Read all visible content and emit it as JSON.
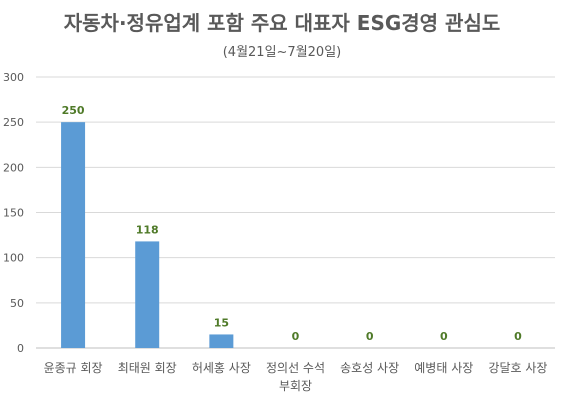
{
  "chart_data": {
    "type": "bar",
    "title": "자동차·정유업계 포함 주요 대표자 ESG경영 관심도",
    "subtitle": "(4월21일~7월20일)",
    "categories": [
      [
        "윤종규 회장"
      ],
      [
        "최태원 회장"
      ],
      [
        "허세홍 사장"
      ],
      [
        "정의선 수석",
        "부회장"
      ],
      [
        "송호성 사장"
      ],
      [
        "예병태 사장"
      ],
      [
        "강달호 사장"
      ]
    ],
    "values": [
      250,
      118,
      15,
      0,
      0,
      0,
      0
    ],
    "ylim": [
      0,
      300
    ],
    "yticks": [
      0,
      50,
      100,
      150,
      200,
      250,
      300
    ],
    "grid": true,
    "legend": "none",
    "colors": {
      "bar": "#5b9bd5",
      "data_label": "#4f7a28",
      "grid": "#d9d9d9",
      "text": "#595959"
    }
  }
}
